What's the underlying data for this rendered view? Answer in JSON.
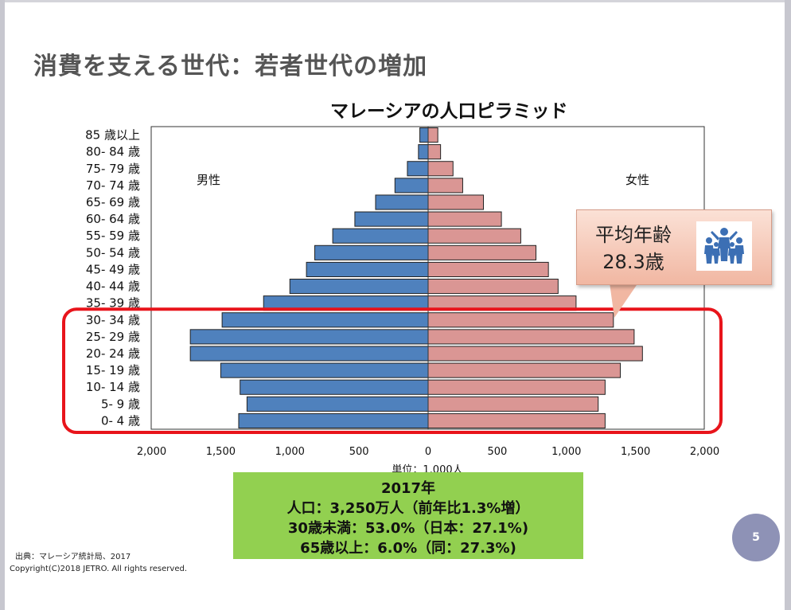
{
  "slide": {
    "title": "消費を支える世代：若者世代の増加",
    "source": "出典：マレーシア統計局、2017",
    "copyright": "Copyright(C)2018 JETRO. All rights reserved.",
    "page_number": "5"
  },
  "callout": {
    "line1": "平均年齢",
    "line2": "28.3歳",
    "icon": "people-group-icon"
  },
  "info_box": {
    "line1": "2017年",
    "line2": "人口：3,250万人（前年比1.3%増）",
    "line3": "30歳未満：53.0%（日本：27.1%)",
    "line4": "65歳以上：6.0%（同：27.3%)"
  },
  "colors": {
    "male": "#4f81bd",
    "female": "#da9694",
    "highlight": "#e8141b",
    "info_box": "#92d050"
  },
  "chart_data": {
    "type": "bar",
    "orientation": "horizontal-pyramid",
    "title": "マレーシアの人口ピラミッド",
    "xlabel": "単位：1,000人",
    "categories": [
      "85 歳以上",
      "80- 84 歳",
      "75- 79 歳",
      "70- 74 歳",
      "65- 69 歳",
      "60- 64 歳",
      "55- 59 歳",
      "50- 54 歳",
      "45- 49 歳",
      "40- 44 歳",
      "35- 39 歳",
      "30- 34 歳",
      "25- 29 歳",
      "20- 24 歳",
      "15- 19 歳",
      "10- 14 歳",
      "5- 9 歳",
      "0- 4 歳"
    ],
    "series": [
      {
        "name": "男性",
        "values": [
          60,
          70,
          150,
          240,
          380,
          530,
          690,
          820,
          880,
          1000,
          1190,
          1490,
          1720,
          1720,
          1500,
          1360,
          1310,
          1370
        ]
      },
      {
        "name": "女性",
        "values": [
          70,
          90,
          180,
          250,
          400,
          530,
          670,
          780,
          870,
          940,
          1070,
          1340,
          1490,
          1550,
          1390,
          1280,
          1230,
          1280
        ]
      }
    ],
    "xlim": [
      -2000,
      2000
    ],
    "xticks": [
      "2,000",
      "1,500",
      "1,000",
      "500",
      "0",
      "500",
      "1,000",
      "1,500",
      "2,000"
    ],
    "highlight_range": [
      "0- 4 歳",
      "30- 34 歳"
    ],
    "grid": false,
    "legend": "inside-top"
  }
}
